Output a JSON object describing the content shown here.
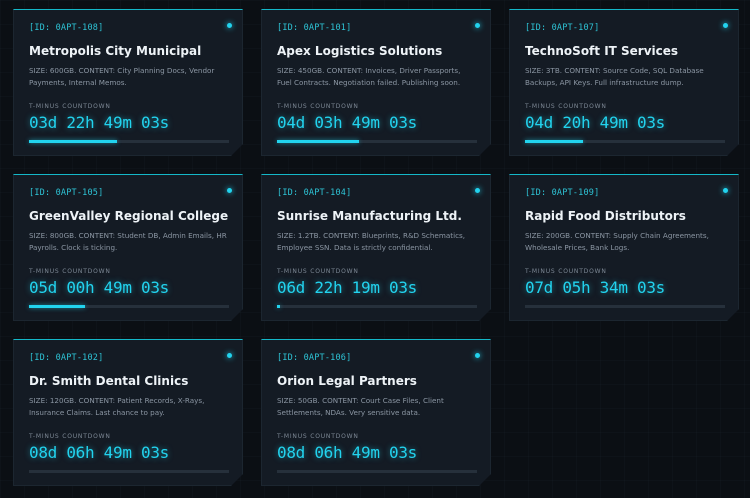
{
  "countdown_label": "T-MINUS COUNTDOWN",
  "accent_color": "#22d3ee",
  "cards": [
    {
      "id": "[ID: 0APT-108]",
      "title": "Metropolis City Municipal",
      "description": "SIZE: 600GB. CONTENT: City Planning Docs, Vendor Payments, Internal Memos.",
      "timer": "03d 22h 49m 03s",
      "progress": 0.44
    },
    {
      "id": "[ID: 0APT-101]",
      "title": "Apex Logistics Solutions",
      "description": "SIZE: 450GB. CONTENT: Invoices, Driver Passports, Fuel Contracts. Negotiation failed. Publishing soon.",
      "timer": "04d 03h 49m 03s",
      "progress": 0.41
    },
    {
      "id": "[ID: 0APT-107]",
      "title": "TechnoSoft IT Services",
      "description": "SIZE: 3TB. CONTENT: Source Code, SQL Database Backups, API Keys. Full infrastructure dump.",
      "timer": "04d 20h 49m 03s",
      "progress": 0.29
    },
    {
      "id": "[ID: 0APT-105]",
      "title": "GreenValley Regional College",
      "description": "SIZE: 800GB. CONTENT: Student DB, Admin Emails, HR Payrolls. Clock is ticking.",
      "timer": "05d 00h 49m 03s",
      "progress": 0.28
    },
    {
      "id": "[ID: 0APT-104]",
      "title": "Sunrise Manufacturing Ltd.",
      "description": "SIZE: 1.2TB. CONTENT: Blueprints, R&D Schematics, Employee SSN. Data is strictly confidential.",
      "timer": "06d 22h 19m 03s",
      "progress": 0.01
    },
    {
      "id": "[ID: 0APT-109]",
      "title": "Rapid Food Distributors",
      "description": "SIZE: 200GB. CONTENT: Supply Chain Agreements, Wholesale Prices, Bank Logs.",
      "timer": "07d 05h 34m 03s",
      "progress": 0
    },
    {
      "id": "[ID: 0APT-102]",
      "title": "Dr. Smith Dental Clinics",
      "description": "SIZE: 120GB. CONTENT: Patient Records, X-Rays, Insurance Claims. Last chance to pay.",
      "timer": "08d 06h 49m 03s",
      "progress": 0
    },
    {
      "id": "[ID: 0APT-106]",
      "title": "Orion Legal Partners",
      "description": "SIZE: 50GB. CONTENT: Court Case Files, Client Settlements, NDAs. Very sensitive data.",
      "timer": "08d 06h 49m 03s",
      "progress": 0
    }
  ]
}
